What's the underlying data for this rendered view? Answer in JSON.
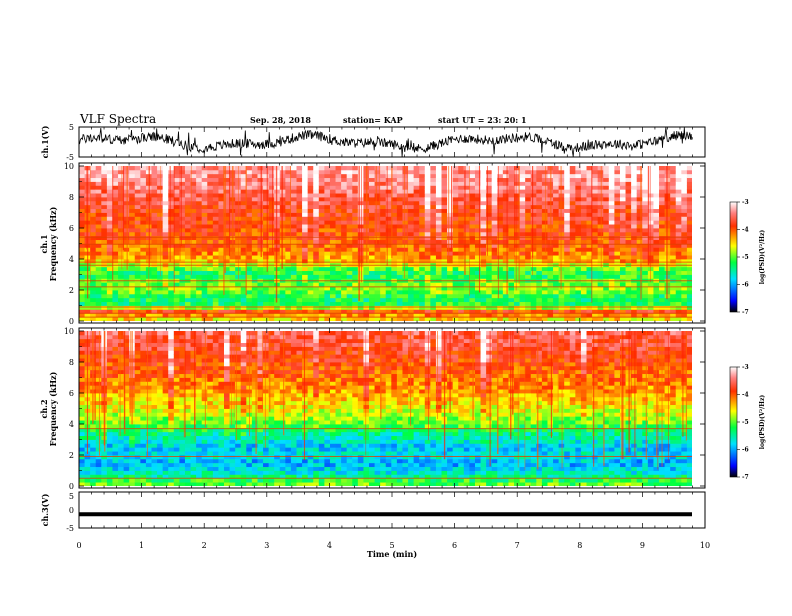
{
  "header": {
    "title": "VLF Spectra",
    "date": "Sep. 28, 2018",
    "station": "station= KAP",
    "start_time": "start  UT  =  23: 20: 1"
  },
  "chart_data": [
    {
      "type": "line",
      "name": "ch1-waveform",
      "ylabel": "ch.1(V)",
      "ylim": [
        -5,
        5
      ],
      "yticks": [
        "5",
        "-5"
      ],
      "xlim": [
        0,
        10
      ]
    },
    {
      "type": "heatmap",
      "name": "ch1-spectrogram",
      "ylabel": "ch.1\nFrequency (kHz)",
      "ylabel_lines": [
        "ch.1",
        "Frequency (kHz)"
      ],
      "ylim": [
        0,
        10
      ],
      "yticks": [
        "0",
        "2",
        "4",
        "6",
        "8",
        "10"
      ],
      "xlim": [
        0,
        9.8
      ],
      "colorbar": {
        "label": "log(PSD)(V²/Hz)",
        "range": [
          -7,
          -3
        ],
        "ticks": [
          "-3",
          "-4",
          "-5",
          "-6",
          "-7"
        ]
      },
      "profile": [
        {
          "f": 0.2,
          "v": -4.5
        },
        {
          "f": 0.6,
          "v": -3.8
        },
        {
          "f": 1.0,
          "v": -5.2
        },
        {
          "f": 1.5,
          "v": -5.3
        },
        {
          "f": 2.0,
          "v": -4.9
        },
        {
          "f": 2.5,
          "v": -5.0
        },
        {
          "f": 3.0,
          "v": -5.3
        },
        {
          "f": 3.5,
          "v": -4.9
        },
        {
          "f": 4.0,
          "v": -4.3
        },
        {
          "f": 5.0,
          "v": -4.0
        },
        {
          "f": 6.0,
          "v": -3.9
        },
        {
          "f": 7.0,
          "v": -3.8
        },
        {
          "f": 8.0,
          "v": -3.6
        },
        {
          "f": 9.0,
          "v": -3.4
        },
        {
          "f": 10.0,
          "v": -3.3
        }
      ],
      "lines_khz": [
        0.25,
        0.5,
        0.9,
        2.2,
        2.6,
        3.6,
        3.8,
        4.95,
        5.4
      ]
    },
    {
      "type": "heatmap",
      "name": "ch2-spectrogram",
      "ylabel": "ch.2\nFrequency (kHz)",
      "ylabel_lines": [
        "ch.2",
        "Frequency (kHz)"
      ],
      "ylim": [
        0,
        10
      ],
      "yticks": [
        "0",
        "2",
        "4",
        "6",
        "8",
        "10"
      ],
      "xlim": [
        0,
        9.8
      ],
      "colorbar": {
        "label": "log(PSD)(V²/Hz)",
        "range": [
          -7,
          -3
        ],
        "ticks": [
          "-3",
          "-4",
          "-5",
          "-6",
          "-7"
        ]
      },
      "profile": [
        {
          "f": 0.2,
          "v": -5.0
        },
        {
          "f": 0.8,
          "v": -5.6
        },
        {
          "f": 1.5,
          "v": -6.0
        },
        {
          "f": 2.0,
          "v": -5.7
        },
        {
          "f": 2.5,
          "v": -5.9
        },
        {
          "f": 3.0,
          "v": -5.6
        },
        {
          "f": 3.5,
          "v": -5.4
        },
        {
          "f": 4.0,
          "v": -5.0
        },
        {
          "f": 5.0,
          "v": -4.6
        },
        {
          "f": 6.0,
          "v": -4.3
        },
        {
          "f": 7.0,
          "v": -4.1
        },
        {
          "f": 8.0,
          "v": -3.9
        },
        {
          "f": 9.0,
          "v": -3.7
        },
        {
          "f": 10.0,
          "v": -3.6
        }
      ],
      "lines_khz": [
        0.5,
        1.9,
        3.7
      ]
    },
    {
      "type": "line",
      "name": "ch3-waveform",
      "ylabel": "ch.3(V)",
      "ylim": [
        -5,
        5
      ],
      "yticks": [
        "5",
        "0",
        "-5"
      ],
      "xlim": [
        0,
        10
      ],
      "constant_value": -1.2,
      "xlabel": "Time (min)",
      "xticks": [
        "0",
        "1",
        "2",
        "3",
        "4",
        "5",
        "6",
        "7",
        "8",
        "9",
        "10"
      ]
    }
  ]
}
